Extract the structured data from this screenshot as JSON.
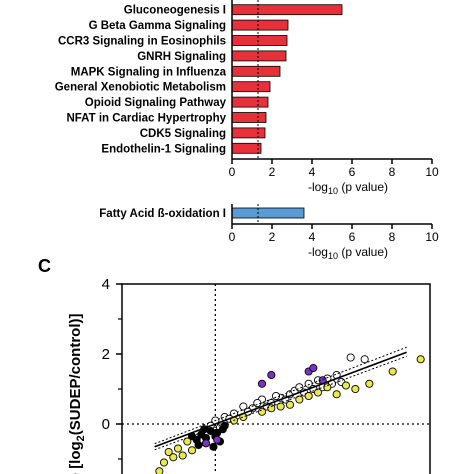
{
  "chart_data": [
    {
      "type": "bar",
      "orientation": "horizontal",
      "categories": [
        "Gluconeogenesis I",
        "G Beta Gamma Signaling",
        "CCR3 Signaling in Eosinophils",
        "GNRH Signaling",
        "MAPK Signaling in Influenza",
        "General Xenobiotic Metabolism",
        "Opioid Signaling Pathway",
        "NFAT in Cardiac Hypertrophy",
        "CDK5 Signaling",
        "Endothelin-1 Signaling"
      ],
      "values": [
        5.5,
        2.8,
        2.75,
        2.7,
        2.4,
        1.9,
        1.8,
        1.7,
        1.65,
        1.45
      ],
      "xlim": [
        0,
        10
      ],
      "xticks": [
        "0",
        "2",
        "4",
        "6",
        "8",
        "10"
      ],
      "xlabel_main": "-log",
      "xlabel_sub": "10",
      "xlabel_tail": " (p value)",
      "threshold": 1.3,
      "color": "#e8303a"
    },
    {
      "type": "bar",
      "orientation": "horizontal",
      "categories": [
        "Fatty Acid ß-oxidation I"
      ],
      "values": [
        3.6
      ],
      "xlim": [
        0,
        10
      ],
      "xticks": [
        "0",
        "2",
        "4",
        "6",
        "8",
        "10"
      ],
      "xlabel_main": "-log",
      "xlabel_sub": "10",
      "xlabel_tail": " (p value)",
      "threshold": 1.3,
      "color": "#5b9bd5"
    },
    {
      "type": "scatter",
      "panel_label": "C",
      "ylabel": "ge [log",
      "ylabel_sub": "2",
      "ylabel_tail": "(SUDEP/control)]",
      "ylim": [
        -2,
        4
      ],
      "yticks": [
        "0",
        "2",
        "4"
      ],
      "xlim": [
        -1,
        2.3
      ],
      "regression": {
        "slope": 1.0,
        "intercept": 0.0,
        "x_range": [
          -0.65,
          2.05
        ]
      },
      "series": [
        {
          "color": "#ffffff",
          "points": [
            [
              0.3,
              0.5
            ],
            [
              0.5,
              0.7
            ],
            [
              0.7,
              0.75
            ],
            [
              0.8,
              0.85
            ],
            [
              0.85,
              0.95
            ],
            [
              0.9,
              1.05
            ],
            [
              0.95,
              0.9
            ],
            [
              1.0,
              1.15
            ],
            [
              1.05,
              1.0
            ],
            [
              1.1,
              1.25
            ],
            [
              1.2,
              1.3
            ],
            [
              1.25,
              1.15
            ],
            [
              1.45,
              1.9
            ],
            [
              1.6,
              1.85
            ],
            [
              0.6,
              0.6
            ],
            [
              0.75,
              0.7
            ],
            [
              0.0,
              0.1
            ],
            [
              -0.05,
              -0.05
            ],
            [
              0.1,
              0.2
            ],
            [
              0.2,
              0.3
            ],
            [
              0.4,
              0.45
            ],
            [
              0.65,
              0.8
            ],
            [
              1.15,
              1.05
            ],
            [
              1.3,
              1.4
            ],
            [
              1.35,
              1.2
            ],
            [
              0.55,
              0.5
            ],
            [
              0.45,
              0.6
            ],
            [
              0.15,
              0.15
            ],
            [
              0.35,
              0.35
            ],
            [
              0.05,
              -0.1
            ]
          ]
        },
        {
          "color": "#000000",
          "points": [
            [
              -0.1,
              -0.4
            ],
            [
              -0.15,
              -0.3
            ],
            [
              -0.05,
              -0.2
            ],
            [
              0.0,
              -0.35
            ],
            [
              0.05,
              -0.5
            ],
            [
              -0.2,
              -0.45
            ],
            [
              -0.1,
              -0.55
            ],
            [
              0.02,
              -0.25
            ],
            [
              0.08,
              -0.15
            ],
            [
              -0.25,
              -0.35
            ],
            [
              -0.18,
              -0.6
            ],
            [
              0.1,
              -0.05
            ],
            [
              -0.02,
              -0.65
            ],
            [
              -0.12,
              -0.15
            ]
          ]
        },
        {
          "color": "#ece84a",
          "points": [
            [
              -0.6,
              -1.35
            ],
            [
              -0.5,
              -0.8
            ],
            [
              -0.45,
              -0.95
            ],
            [
              -0.4,
              -0.7
            ],
            [
              -0.35,
              -0.9
            ],
            [
              -0.3,
              -0.5
            ],
            [
              -0.25,
              -0.75
            ],
            [
              0.2,
              0.1
            ],
            [
              0.3,
              0.2
            ],
            [
              0.6,
              0.45
            ],
            [
              0.7,
              0.5
            ],
            [
              0.9,
              0.7
            ],
            [
              1.0,
              0.8
            ],
            [
              1.1,
              0.9
            ],
            [
              1.2,
              1.05
            ],
            [
              1.3,
              0.85
            ],
            [
              1.5,
              1.0
            ],
            [
              1.65,
              1.15
            ],
            [
              1.9,
              1.5
            ],
            [
              2.2,
              1.85
            ],
            [
              0.8,
              0.55
            ],
            [
              1.4,
              1.1
            ],
            [
              -0.55,
              -1.1
            ],
            [
              0.5,
              0.35
            ]
          ]
        },
        {
          "color": "#7b32c4",
          "points": [
            [
              0.6,
              1.4
            ],
            [
              0.5,
              1.15
            ],
            [
              1.0,
              1.5
            ],
            [
              1.05,
              1.6
            ],
            [
              -0.1,
              -0.55
            ],
            [
              0.02,
              -0.45
            ],
            [
              1.15,
              1.25
            ]
          ]
        }
      ]
    }
  ]
}
